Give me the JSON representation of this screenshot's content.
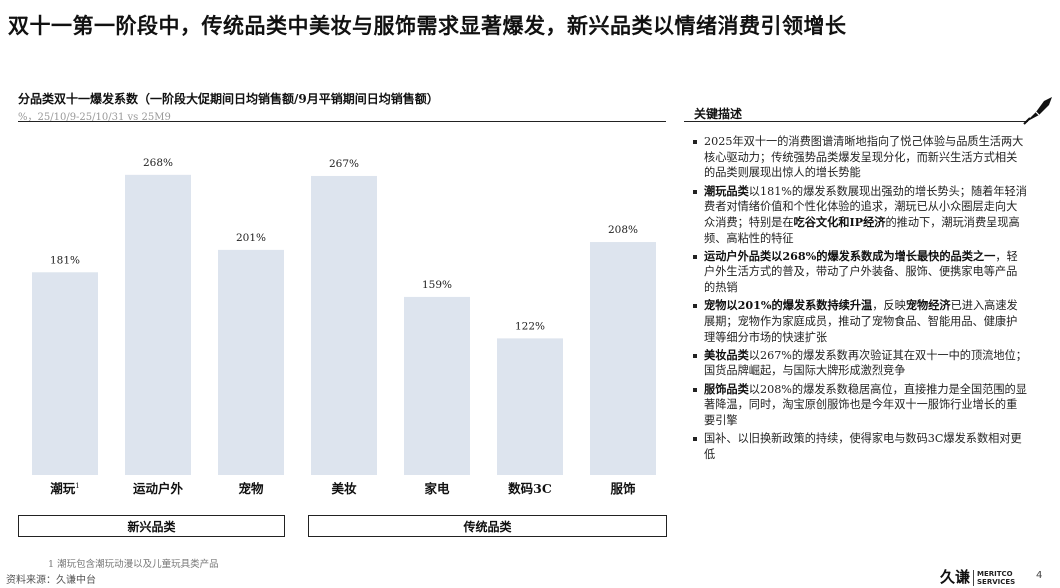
{
  "title": "双十一第一阶段中，传统品类中美妆与服饰需求显著爆发，新兴品类以情绪消费引领增长",
  "chart_data": {
    "type": "bar",
    "title": "分品类双十一爆发系数（一阶段大促期间日均销售额/9月平销期间日均销售额）",
    "subtitle": "%，25/10/9-25/10/31 vs 25M9",
    "categories": [
      "潮玩",
      "运动户外",
      "宠物",
      "美妆",
      "家电",
      "数码3C",
      "服饰"
    ],
    "category_superscripts": [
      "1",
      "",
      "",
      "",
      "",
      "",
      ""
    ],
    "values": [
      181,
      268,
      201,
      267,
      159,
      122,
      208
    ],
    "value_labels": [
      "181%",
      "268%",
      "201%",
      "267%",
      "159%",
      "122%",
      "208%"
    ],
    "ylim": [
      0,
      300
    ],
    "bar_color": "#dde4ee",
    "groups": [
      {
        "label": "新兴品类",
        "categories": [
          "潮玩",
          "运动户外",
          "宠物"
        ]
      },
      {
        "label": "传统品类",
        "categories": [
          "美妆",
          "家电",
          "数码3C",
          "服饰"
        ]
      }
    ]
  },
  "key_points": {
    "header": "关键描述",
    "items": [
      {
        "segments": [
          {
            "text": "2025年双十一的消费图谱清晰地指向了悦己体验与品质生活两大核心驱动力；传统强势品类爆发呈现分化，而新兴生活方式相关的品类则展现出惊人的增长势能",
            "bold": false
          }
        ]
      },
      {
        "segments": [
          {
            "text": "潮玩品类",
            "bold": true
          },
          {
            "text": "以181%的爆发系数展现出强劲的增长势头；随着年轻消费者对情绪价值和个性化体验的追求，潮玩已从小众圈层走向大众消费；特别是在",
            "bold": false
          },
          {
            "text": "吃谷文化和IP经济",
            "bold": true
          },
          {
            "text": "的推动下，潮玩消费呈现高频、高粘性的特征",
            "bold": false
          }
        ]
      },
      {
        "segments": [
          {
            "text": "运动户外品类以268%的爆发系数成为增长最快的品类之一",
            "bold": true
          },
          {
            "text": "，轻户外生活方式的普及，带动了户外装备、服饰、便携家电等产品的热销",
            "bold": false
          }
        ]
      },
      {
        "segments": [
          {
            "text": "宠物以201%的爆发系数持续升温",
            "bold": true
          },
          {
            "text": "，反映",
            "bold": false
          },
          {
            "text": "宠物经济",
            "bold": true
          },
          {
            "text": "已进入高速发展期；宠物作为家庭成员，推动了宠物食品、智能用品、健康护理等细分市场的快速扩张",
            "bold": false
          }
        ]
      },
      {
        "segments": [
          {
            "text": "美妆品类",
            "bold": true
          },
          {
            "text": "以267%的爆发系数再次验证其在双十一中的顶流地位；国货品牌崛起，与国际大牌形成激烈竞争",
            "bold": false
          }
        ]
      },
      {
        "segments": [
          {
            "text": "服饰品类",
            "bold": true
          },
          {
            "text": "以208%的爆发系数稳居高位，直接推力是全国范围的显著降温，同时，淘宝原创服饰也是今年双十一服饰行业增长的重要引擎",
            "bold": false
          }
        ]
      },
      {
        "segments": [
          {
            "text": "国补、以旧换新政策的持续，使得家电与数码3C爆发系数相对更低",
            "bold": false
          }
        ]
      }
    ]
  },
  "footnote": "1   潮玩包含潮玩动漫以及儿童玩具类产品",
  "source": "资料来源：久谦中台",
  "logo": {
    "cn": "久谦",
    "en_line1": "MERITCO",
    "en_line2": "SERVICES"
  },
  "page_number": "4",
  "icons": {
    "corner": "fountain-pen-icon"
  }
}
